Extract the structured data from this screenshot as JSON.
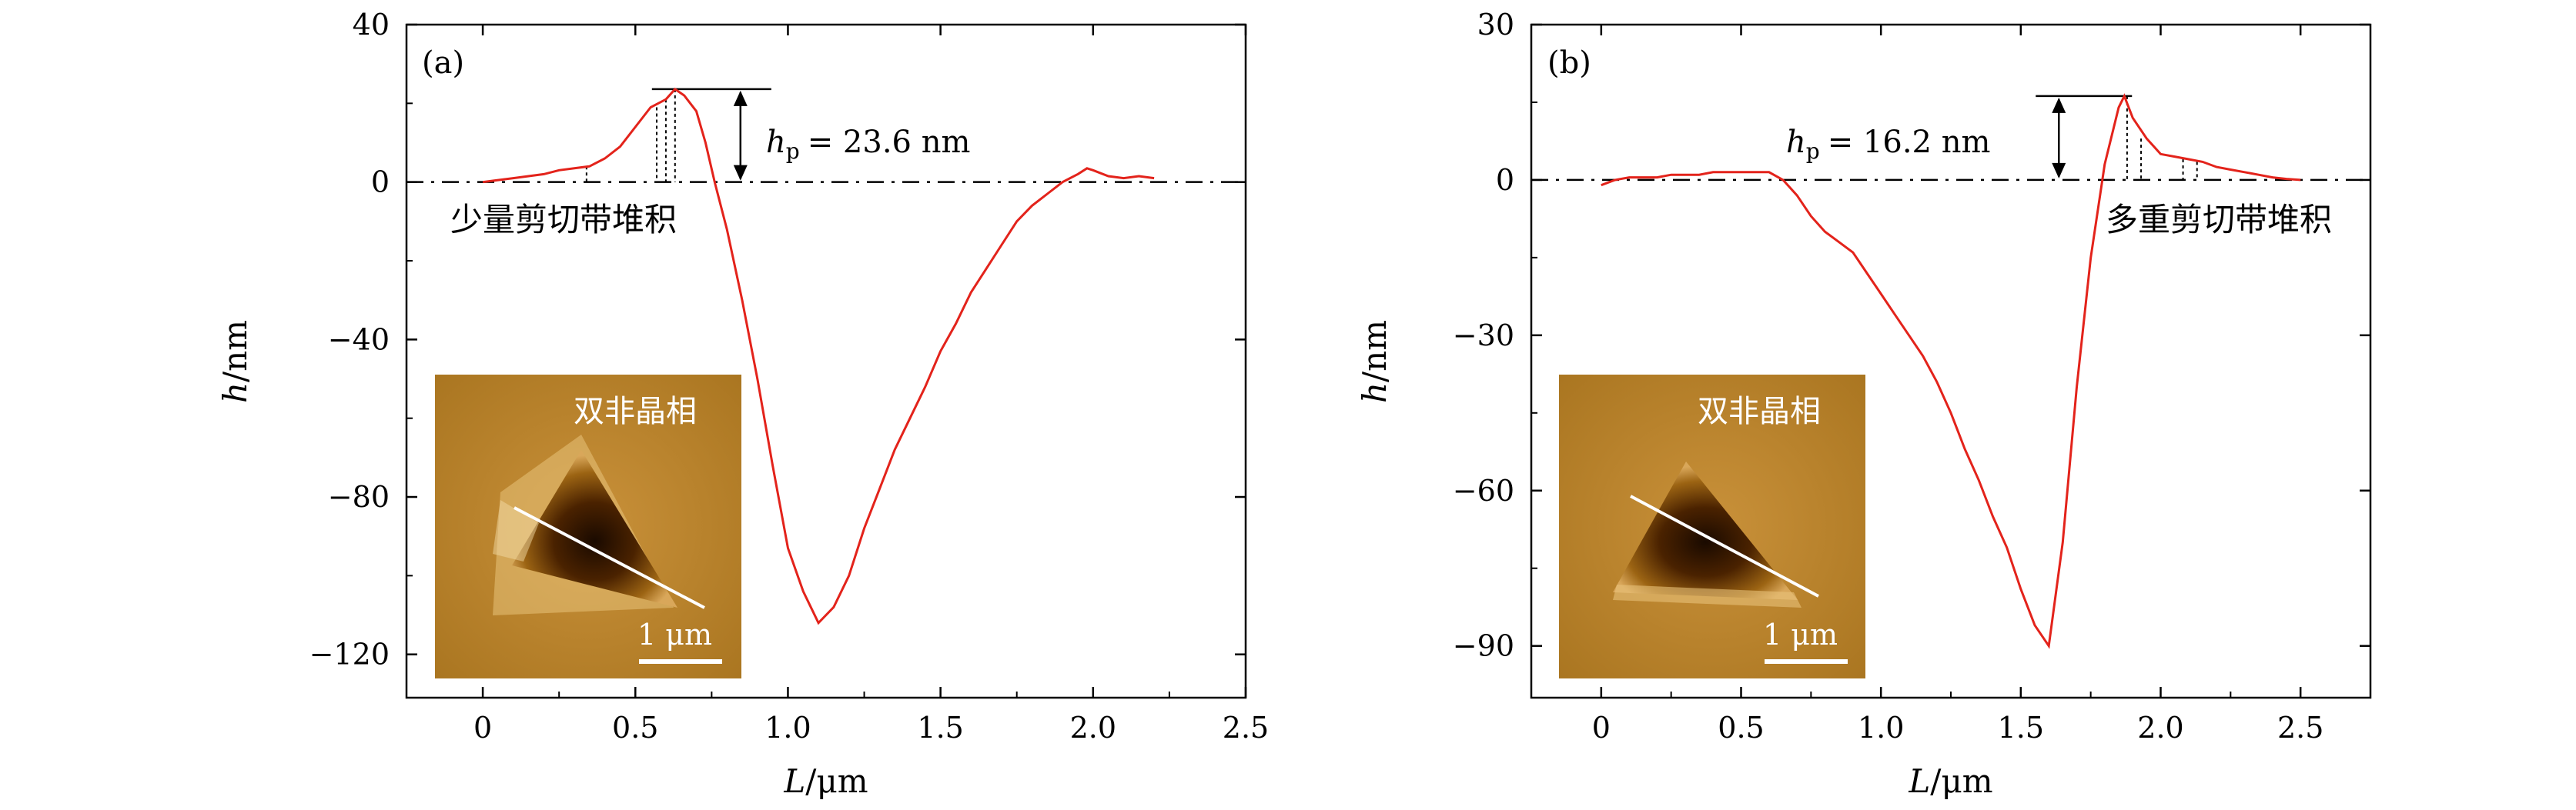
{
  "chart_data": [
    {
      "panel_label": "(a)",
      "type": "line",
      "xlabel": "L/μm",
      "ylabel": "h/nm",
      "xlim": [
        -0.25,
        2.5
      ],
      "ylim": [
        -131,
        40
      ],
      "xticks": [
        0,
        0.5,
        1.0,
        1.5,
        2.0,
        2.5
      ],
      "xtick_labels": [
        "0",
        "0.5",
        "1.0",
        "1.5",
        "2.0",
        "2.5"
      ],
      "yticks": [
        40,
        0,
        -40,
        -80,
        -120
      ],
      "ytick_labels": [
        "40",
        "0",
        "−40",
        "−80",
        "−120"
      ],
      "series_color": "#e3231b",
      "x": [
        0,
        0.05,
        0.1,
        0.15,
        0.2,
        0.25,
        0.3,
        0.35,
        0.4,
        0.45,
        0.5,
        0.55,
        0.6,
        0.63,
        0.66,
        0.7,
        0.73,
        0.76,
        0.8,
        0.85,
        0.9,
        0.95,
        1.0,
        1.05,
        1.1,
        1.15,
        1.2,
        1.25,
        1.3,
        1.35,
        1.4,
        1.45,
        1.5,
        1.55,
        1.6,
        1.65,
        1.7,
        1.75,
        1.8,
        1.85,
        1.9,
        1.95,
        1.98,
        2.0,
        2.05,
        2.1,
        2.15,
        2.2
      ],
      "y": [
        0,
        0.5,
        1,
        1.5,
        2,
        3,
        3.5,
        4,
        6,
        9,
        14,
        19,
        21,
        23.6,
        22,
        18,
        10,
        0,
        -12,
        -30,
        -50,
        -72,
        -93,
        -104,
        -112,
        -108,
        -100,
        -88,
        -78,
        -68,
        -60,
        -52,
        -43,
        -36,
        -28,
        -22,
        -16,
        -10,
        -6,
        -3,
        0,
        2,
        3.5,
        3,
        1.5,
        1,
        1.5,
        1
      ],
      "baseline": 0,
      "annotation_hp": "h",
      "annotation_hp_sub": "p",
      "annotation_text": "= 23.6 nm",
      "annotation_cjk": "少量剪切带堆积",
      "inset_label": "双非晶相",
      "inset_scale": "1 μm"
    },
    {
      "panel_label": "(b)",
      "type": "line",
      "xlabel": "L/μm",
      "ylabel": "h/nm",
      "xlim": [
        -0.25,
        2.75
      ],
      "ylim": [
        -100,
        30
      ],
      "xticks": [
        0,
        0.5,
        1.0,
        1.5,
        2.0,
        2.5
      ],
      "xtick_labels": [
        "0",
        "0.5",
        "1.0",
        "1.5",
        "2.0",
        "2.5"
      ],
      "yticks": [
        30,
        0,
        -30,
        -60,
        -90
      ],
      "ytick_labels": [
        "30",
        "0",
        "−30",
        "−60",
        "−90"
      ],
      "series_color": "#e3231b",
      "x": [
        0,
        0.05,
        0.1,
        0.15,
        0.2,
        0.25,
        0.3,
        0.35,
        0.4,
        0.45,
        0.5,
        0.55,
        0.6,
        0.65,
        0.7,
        0.75,
        0.8,
        0.85,
        0.9,
        0.95,
        1.0,
        1.05,
        1.1,
        1.15,
        1.2,
        1.25,
        1.3,
        1.35,
        1.4,
        1.45,
        1.5,
        1.55,
        1.6,
        1.65,
        1.7,
        1.75,
        1.8,
        1.85,
        1.87,
        1.9,
        1.95,
        2.0,
        2.05,
        2.1,
        2.15,
        2.2,
        2.25,
        2.3,
        2.35,
        2.4,
        2.45,
        2.5
      ],
      "y": [
        -1,
        0,
        0.5,
        0.5,
        0.5,
        1,
        1,
        1,
        1.5,
        1.5,
        1.5,
        1.5,
        1.5,
        0,
        -3,
        -7,
        -10,
        -12,
        -14,
        -18,
        -22,
        -26,
        -30,
        -34,
        -39,
        -45,
        -52,
        -58,
        -65,
        -71,
        -79,
        -86,
        -90,
        -70,
        -40,
        -15,
        3,
        14,
        16.2,
        12,
        8,
        5,
        4.5,
        4,
        3.5,
        2.5,
        2,
        1.5,
        1,
        0.5,
        0.2,
        0
      ],
      "baseline": 0,
      "annotation_hp": "h",
      "annotation_hp_sub": "p",
      "annotation_text": "= 16.2 nm",
      "annotation_cjk": "多重剪切带堆积",
      "inset_label": "双非晶相",
      "inset_scale": "1 μm"
    }
  ]
}
